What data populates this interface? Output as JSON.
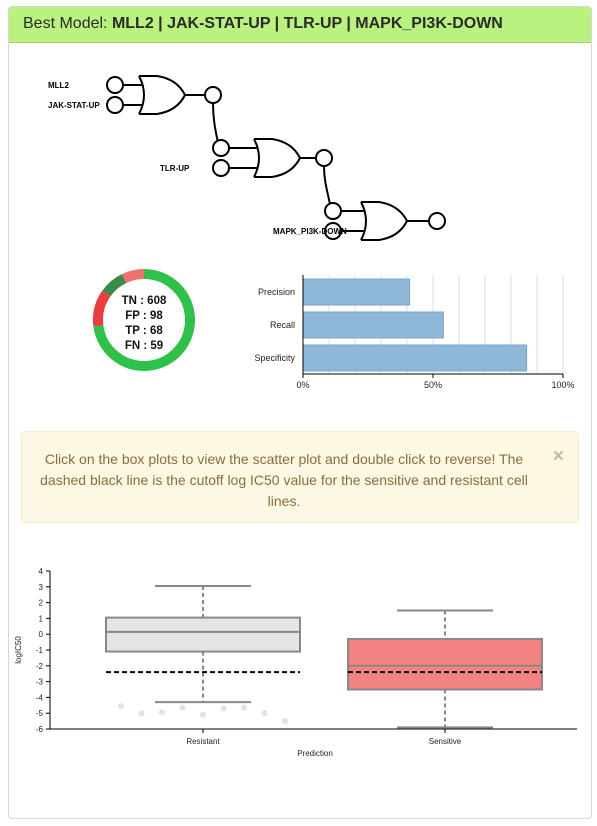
{
  "header": {
    "prefix": "Best Model: ",
    "model": "MLL2 | JAK-STAT-UP | TLR-UP | MAPK_PI3K-DOWN"
  },
  "logic_diagram": {
    "inputs": [
      "MLL2",
      "JAK-STAT-UP",
      "TLR-UP",
      "MAPK_PI3K-DOWN"
    ],
    "gate_type": "OR"
  },
  "confusion": {
    "labels": [
      {
        "key": "TN",
        "text": "TN : 608"
      },
      {
        "key": "FP",
        "text": "FP : 98"
      },
      {
        "key": "TP",
        "text": "TP : 68"
      },
      {
        "key": "FN",
        "text": "FN : 59"
      }
    ],
    "values": {
      "TN": 608,
      "FP": 98,
      "TP": 68,
      "FN": 59
    },
    "colors": {
      "TN": "#2ec24b",
      "FP": "#ee3b3b",
      "TP": "#3d8a4a",
      "FN": "#f07070"
    }
  },
  "metrics_chart": {
    "type": "bar",
    "categories": [
      "Precision",
      "Recall",
      "Specificity"
    ],
    "values": [
      0.41,
      0.54,
      0.86
    ],
    "xlim": [
      0,
      1
    ],
    "ticks": [
      "0%",
      "50%",
      "100%"
    ],
    "bar_color": "#8fb7d8"
  },
  "alert": {
    "message": "Click on the box plots to view the scatter plot and double click to reverse! The dashed black line is the cutoff log IC50 value for the sensitive and resistant cell lines.",
    "close_glyph": "×"
  },
  "chart_data": {
    "type": "box",
    "title": "",
    "xlabel": "Prediction",
    "ylabel": "logIC50",
    "ylim": [
      -6,
      4
    ],
    "yticks": [
      4,
      3,
      2,
      1,
      0,
      -1,
      -2,
      -3,
      -4,
      -5,
      -6
    ],
    "cutoff": -2.4,
    "groups": [
      {
        "name": "Resistant",
        "min": -4.3,
        "q1": -1.1,
        "median": 0.15,
        "q3": 1.05,
        "max": 3.05,
        "fill": "#e5e5e5",
        "outliers": [
          -4.55,
          -5.0,
          -4.95,
          -4.65,
          -5.1,
          -4.7,
          -4.65,
          -5.0,
          -5.5
        ]
      },
      {
        "name": "Sensitive",
        "min": -5.9,
        "q1": -3.5,
        "median": -2.0,
        "q3": -0.3,
        "max": 1.5,
        "fill": "#f28282",
        "outliers": []
      }
    ]
  }
}
